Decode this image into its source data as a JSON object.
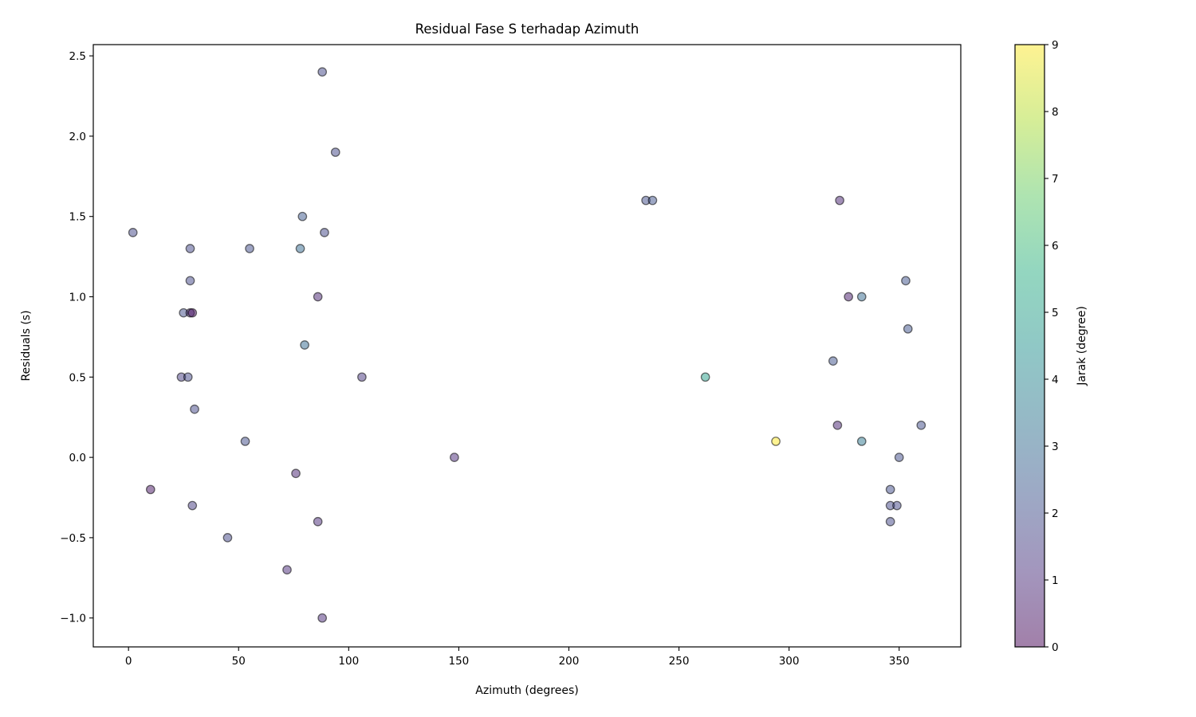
{
  "chart_data": {
    "type": "scatter",
    "title": "Residual Fase S terhadap Azimuth",
    "xlabel": "Azimuth (degrees)",
    "ylabel": "Residuals (s)",
    "xlim": [
      -16,
      378
    ],
    "ylim": [
      -1.18,
      2.57
    ],
    "xticks": [
      0,
      50,
      100,
      150,
      200,
      250,
      300,
      350
    ],
    "yticks": [
      -1.0,
      -0.5,
      0.0,
      0.5,
      1.0,
      1.5,
      2.0,
      2.5
    ],
    "xtick_labels": [
      "0",
      "50",
      "100",
      "150",
      "200",
      "250",
      "300",
      "350"
    ],
    "ytick_labels": [
      "−1.0",
      "−0.5",
      "0.0",
      "0.5",
      "1.0",
      "1.5",
      "2.0",
      "2.5"
    ],
    "grid": false,
    "marker_alpha": 0.5,
    "colorbar": {
      "label": "Jarak (degree)",
      "range": [
        0,
        9
      ],
      "ticks": [
        0,
        1,
        2,
        3,
        4,
        5,
        6,
        7,
        8,
        9
      ],
      "tick_labels": [
        "0",
        "1",
        "2",
        "3",
        "4",
        "5",
        "6",
        "7",
        "8",
        "9"
      ],
      "colormap": "viridis"
    },
    "points": [
      {
        "x": 88,
        "y": 2.4,
        "c": 1.8
      },
      {
        "x": 94,
        "y": 1.9,
        "c": 1.8
      },
      {
        "x": 2,
        "y": 1.4,
        "c": 1.8
      },
      {
        "x": 28,
        "y": 1.3,
        "c": 1.8
      },
      {
        "x": 28,
        "y": 1.1,
        "c": 1.8
      },
      {
        "x": 25,
        "y": 0.9,
        "c": 2.0
      },
      {
        "x": 28,
        "y": 0.9,
        "c": 1.0
      },
      {
        "x": 29,
        "y": 0.9,
        "c": 0.3
      },
      {
        "x": 24,
        "y": 0.5,
        "c": 1.5
      },
      {
        "x": 27,
        "y": 0.5,
        "c": 1.8
      },
      {
        "x": 30,
        "y": 0.3,
        "c": 1.8
      },
      {
        "x": 10,
        "y": -0.2,
        "c": 0.4
      },
      {
        "x": 29,
        "y": -0.3,
        "c": 1.5
      },
      {
        "x": 45,
        "y": -0.5,
        "c": 1.8
      },
      {
        "x": 53,
        "y": 0.1,
        "c": 2.0
      },
      {
        "x": 55,
        "y": 1.3,
        "c": 2.0
      },
      {
        "x": 79,
        "y": 1.5,
        "c": 2.4
      },
      {
        "x": 78,
        "y": 1.3,
        "c": 3.0
      },
      {
        "x": 89,
        "y": 1.4,
        "c": 1.8
      },
      {
        "x": 86,
        "y": 1.0,
        "c": 0.8
      },
      {
        "x": 80,
        "y": 0.7,
        "c": 3.0
      },
      {
        "x": 76,
        "y": -0.1,
        "c": 0.8
      },
      {
        "x": 86,
        "y": -0.4,
        "c": 1.0
      },
      {
        "x": 72,
        "y": -0.7,
        "c": 1.0
      },
      {
        "x": 88,
        "y": -1.0,
        "c": 1.0
      },
      {
        "x": 106,
        "y": 0.5,
        "c": 1.3
      },
      {
        "x": 148,
        "y": 0.0,
        "c": 1.0
      },
      {
        "x": 235,
        "y": 1.6,
        "c": 2.0
      },
      {
        "x": 238,
        "y": 1.6,
        "c": 2.2
      },
      {
        "x": 262,
        "y": 0.5,
        "c": 5.0
      },
      {
        "x": 294,
        "y": 0.1,
        "c": 9.0
      },
      {
        "x": 320,
        "y": 0.6,
        "c": 2.2
      },
      {
        "x": 322,
        "y": 0.2,
        "c": 0.8
      },
      {
        "x": 323,
        "y": 1.6,
        "c": 0.8
      },
      {
        "x": 327,
        "y": 1.0,
        "c": 0.6
      },
      {
        "x": 333,
        "y": 1.0,
        "c": 3.0
      },
      {
        "x": 333,
        "y": 0.1,
        "c": 3.5
      },
      {
        "x": 346,
        "y": -0.2,
        "c": 2.0
      },
      {
        "x": 346,
        "y": -0.3,
        "c": 1.8
      },
      {
        "x": 349,
        "y": -0.3,
        "c": 1.8
      },
      {
        "x": 346,
        "y": -0.4,
        "c": 1.8
      },
      {
        "x": 350,
        "y": 0.0,
        "c": 2.0
      },
      {
        "x": 353,
        "y": 1.1,
        "c": 2.2
      },
      {
        "x": 354,
        "y": 0.8,
        "c": 2.2
      },
      {
        "x": 360,
        "y": 0.2,
        "c": 2.0
      }
    ]
  }
}
